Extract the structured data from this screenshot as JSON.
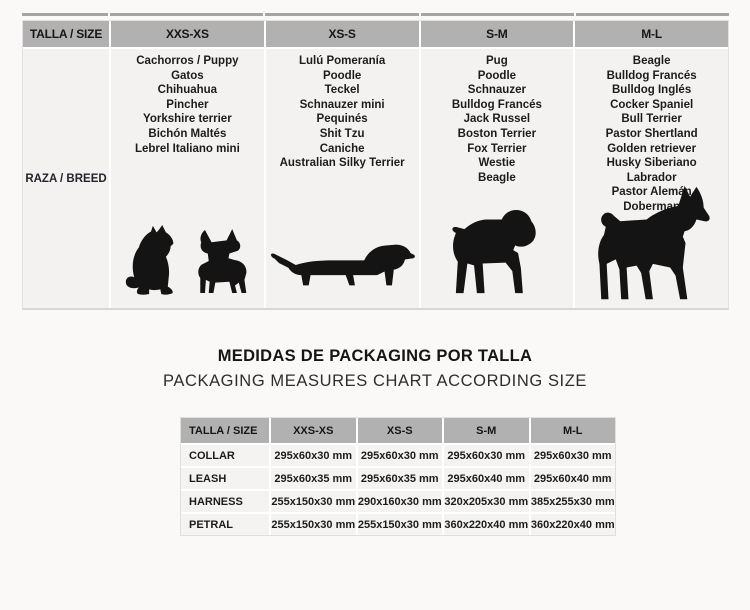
{
  "size_table": {
    "header_label": "TALLA / SIZE",
    "row_label": "RAZA / BREED",
    "columns": [
      {
        "size": "XXS-XS",
        "breeds": [
          "Cachorros / Puppy",
          "Gatos",
          "Chihuahua",
          "Pincher",
          "Yorkshire terrier",
          "Bichón Maltés",
          "Lebrel Italiano mini"
        ],
        "silhouettes": [
          "cat-icon",
          "chihuahua-icon"
        ]
      },
      {
        "size": "XS-S",
        "breeds": [
          "Lulú Pomeranía",
          "Poodle",
          "Teckel",
          "Schnauzer mini",
          "Pequinés",
          "Shit Tzu",
          "Caniche",
          "Australian Silky Terrier"
        ],
        "silhouettes": [
          "dachshund-icon"
        ]
      },
      {
        "size": "S-M",
        "breeds": [
          "Pug",
          "Poodle",
          "Schnauzer",
          "Bulldog Francés",
          "Jack Russel",
          "Boston Terrier",
          "Fox Terrier",
          "Westie",
          "Beagle"
        ],
        "silhouettes": [
          "schnauzer-icon"
        ]
      },
      {
        "size": "M-L",
        "breeds": [
          "Beagle",
          "Bulldog Francés",
          "Bulldog Inglés",
          "Cocker Spaniel",
          "Bull Terrier",
          "Pastor Shertland",
          "Golden retriever",
          "Husky Siberiano",
          "Labrador",
          "Pastor Alemán",
          "Doberman"
        ],
        "silhouettes": [
          "doberman-icon"
        ]
      }
    ]
  },
  "titles": {
    "title_es": "MEDIDAS DE PACKAGING POR TALLA",
    "title_en": "PACKAGING MEASURES CHART ACCORDING SIZE"
  },
  "packaging_table": {
    "header": [
      "TALLA / SIZE",
      "XXS-XS",
      "XS-S",
      "S-M",
      "M-L"
    ],
    "rows": [
      {
        "label": "COLLAR",
        "values": [
          "295x60x30 mm",
          "295x60x30 mm",
          "295x60x30 mm",
          "295x60x30 mm"
        ]
      },
      {
        "label": "LEASH",
        "values": [
          "295x60x35 mm",
          "295x60x35 mm",
          "295x60x40 mm",
          "295x60x40 mm"
        ]
      },
      {
        "label": "HARNESS",
        "values": [
          "255x150x30 mm",
          "290x160x30 mm",
          "320x205x30 mm",
          "385x255x30 mm"
        ]
      },
      {
        "label": "PETRAL",
        "values": [
          "255x150x30 mm",
          "255x150x30 mm",
          "360x220x40 mm",
          "360x220x40 mm"
        ]
      }
    ]
  },
  "colors": {
    "header_bg": "#b1b1b1",
    "cell_bg": "#f3f2f0",
    "page_bg": "#faf9f7",
    "text": "#1b1b1b",
    "silhouette": "#141414"
  }
}
